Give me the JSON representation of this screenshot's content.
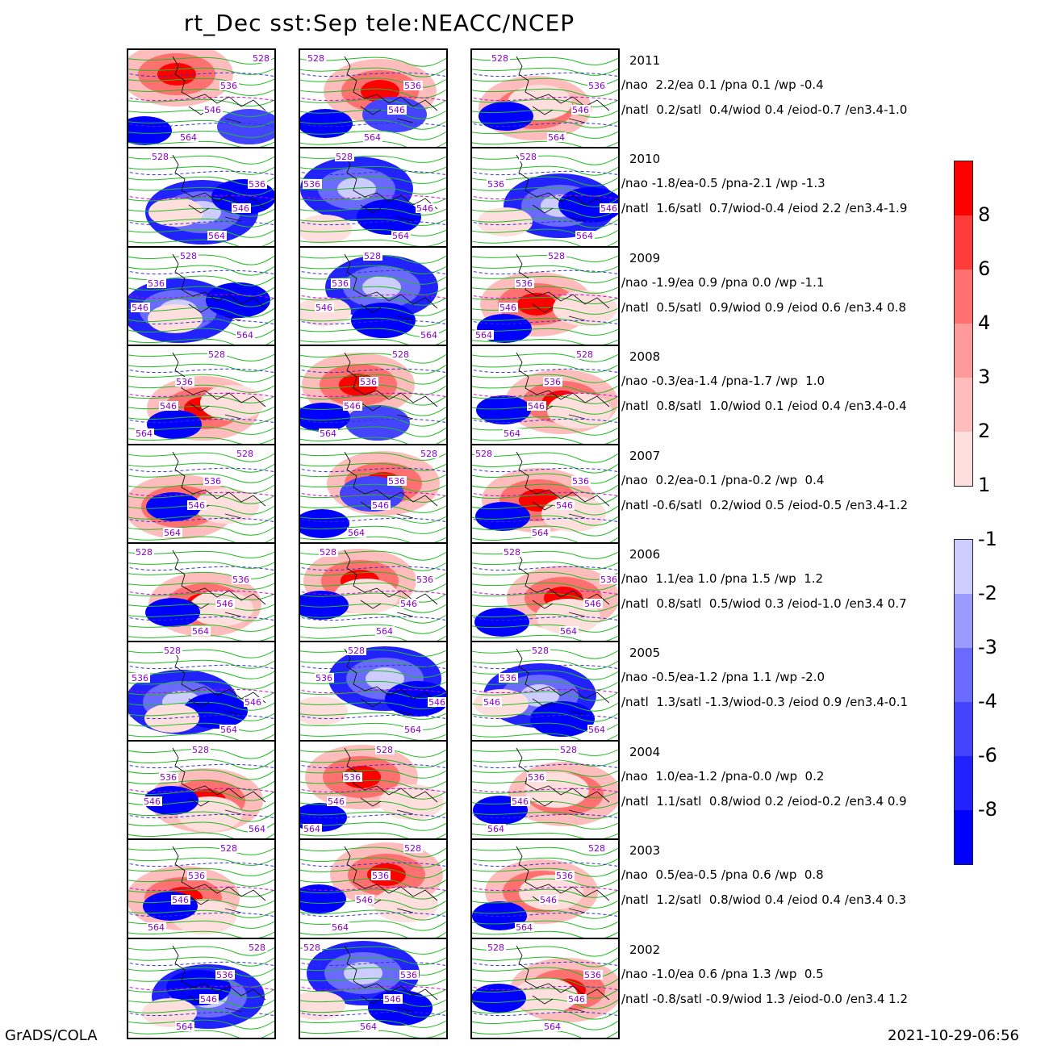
{
  "title": "rt_Dec sst:Sep tele:NEACC/NCEP",
  "footer": {
    "left": "GrADS/COLA",
    "right": "2021-10-29-06:56"
  },
  "chart_data": {
    "type": "heatmap",
    "title": "rt_Dec sst:Sep tele:NEACC/NCEP",
    "columns": 3,
    "contour_labels": [
      "528",
      "536",
      "546",
      "564"
    ],
    "colorbar": {
      "positive": {
        "ticks": [
          "8",
          "6",
          "4",
          "3",
          "2",
          "1"
        ],
        "colors": [
          "#ff0000",
          "#ff3c3c",
          "#ff7070",
          "#ff9a9a",
          "#ffbcbc",
          "#ffdede"
        ]
      },
      "negative": {
        "ticks": [
          "-1",
          "-2",
          "-3",
          "-4",
          "-6",
          "-8"
        ],
        "colors": [
          "#ccccff",
          "#9b9bff",
          "#6a6aff",
          "#4444ff",
          "#2222ff",
          "#0000ff"
        ]
      }
    },
    "colors": {
      "contour": "#22bb22",
      "dashed_contour": "#3030d0",
      "magenta_dash": "#cc00cc",
      "label_text": "#8800cc"
    },
    "rows": [
      {
        "year": "2011",
        "line1": "/nao  2.2/ea 0.1 /pna 0.1 /wp -0.4",
        "line2": "/natl  0.2/satl  0.4/wiod 0.4 /eiod-0.7 /en3.4-1.0"
      },
      {
        "year": "2010",
        "line1": "/nao -1.8/ea-0.5 /pna-2.1 /wp -1.3",
        "line2": "/natl  1.6/satl  0.7/wiod-0.4 /eiod 2.2 /en3.4-1.9"
      },
      {
        "year": "2009",
        "line1": "/nao -1.9/ea 0.9 /pna 0.0 /wp -1.1",
        "line2": "/natl  0.5/satl  0.9/wiod 0.9 /eiod 0.6 /en3.4 0.8"
      },
      {
        "year": "2008",
        "line1": "/nao -0.3/ea-1.4 /pna-1.7 /wp  1.0",
        "line2": "/natl  0.8/satl  1.0/wiod 0.1 /eiod 0.4 /en3.4-0.4"
      },
      {
        "year": "2007",
        "line1": "/nao  0.2/ea-0.1 /pna-0.2 /wp  0.4",
        "line2": "/natl -0.6/satl  0.2/wiod 0.5 /eiod-0.5 /en3.4-1.2"
      },
      {
        "year": "2006",
        "line1": "/nao  1.1/ea 1.0 /pna 1.5 /wp  1.2",
        "line2": "/natl  0.8/satl  0.5/wiod 0.3 /eiod-1.0 /en3.4 0.7"
      },
      {
        "year": "2005",
        "line1": "/nao -0.5/ea-1.2 /pna 1.1 /wp -2.0",
        "line2": "/natl  1.3/satl -1.3/wiod-0.3 /eiod 0.9 /en3.4-0.1"
      },
      {
        "year": "2004",
        "line1": "/nao  1.0/ea-1.2 /pna-0.0 /wp  0.2",
        "line2": "/natl  1.1/satl  0.8/wiod 0.2 /eiod-0.2 /en3.4 0.9"
      },
      {
        "year": "2003",
        "line1": "/nao  0.5/ea-0.5 /pna 0.6 /wp  0.8",
        "line2": "/natl  1.2/satl  0.8/wiod 0.4 /eiod 0.4 /en3.4 0.3"
      },
      {
        "year": "2002",
        "line1": "/nao -1.0/ea 0.6 /pna 1.3 /wp  0.5",
        "line2": "/natl -0.8/satl -0.9/wiod 1.3 /eiod-0.0 /en3.4 1.2"
      }
    ],
    "panel_anomaly_sign": [
      [
        "mixed",
        "mixed",
        "positive"
      ],
      [
        "negative",
        "negative",
        "negative"
      ],
      [
        "negative",
        "negative",
        "positive"
      ],
      [
        "positive",
        "mixed",
        "positive"
      ],
      [
        "positive",
        "mixed",
        "positive"
      ],
      [
        "positive",
        "positive",
        "positive"
      ],
      [
        "negative",
        "negative",
        "negative"
      ],
      [
        "positive",
        "positive",
        "positive"
      ],
      [
        "positive",
        "positive",
        "positive"
      ],
      [
        "negative",
        "negative",
        "positive"
      ]
    ]
  }
}
